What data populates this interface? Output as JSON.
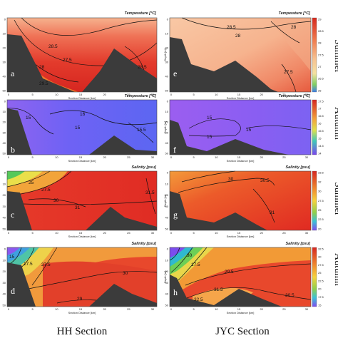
{
  "chart_data": {
    "type": "heatmap",
    "section_labels": {
      "left": "HH Section",
      "right": "JYC Section"
    },
    "season_labels": [
      "Summer",
      "Autumn"
    ],
    "xlabel": "Section Distance [km]",
    "ylabel": "Depth [m]",
    "x_ticks": [
      "0",
      "5",
      "10",
      "15",
      "20",
      "25",
      "30"
    ],
    "y_ticks": [
      "0",
      "10",
      "20",
      "30",
      "40",
      "50"
    ],
    "panels": [
      {
        "letter": "a",
        "title": "Temperature [°C]",
        "contours": [
          "28.5",
          "27.5",
          "28",
          "29.5",
          "28.5"
        ]
      },
      {
        "letter": "b",
        "title": "Temperature [°C]",
        "contours": [
          "15",
          "15",
          "15.5",
          "16"
        ]
      },
      {
        "letter": "c",
        "title": "Salinity [psu]",
        "contours": [
          "25",
          "27.5",
          "30",
          "31",
          "31.5"
        ]
      },
      {
        "letter": "d",
        "title": "Salinity [psu]",
        "contours": [
          "15",
          "17.5",
          "27.5",
          "30",
          "29"
        ]
      },
      {
        "letter": "e",
        "title": "Temperature [°C]",
        "contours": [
          "28.5",
          "28",
          "28",
          "27.5"
        ]
      },
      {
        "letter": "f",
        "title": "Temperature [°C]",
        "contours": [
          "15",
          "15",
          "15"
        ]
      },
      {
        "letter": "g",
        "title": "Salinity [psu]",
        "contours": [
          "30",
          "30.5",
          "31"
        ]
      },
      {
        "letter": "h",
        "title": "Salinity [psu]",
        "contours": [
          "30",
          "17.5",
          "29.5",
          "31.5",
          "32.5",
          "30.5"
        ]
      }
    ],
    "colorbars": [
      {
        "ticks": [
          "29",
          "28.5",
          "28",
          "27.5",
          "27",
          "26.5",
          "26"
        ]
      },
      {
        "ticks": [
          "17.5",
          "17",
          "16.5",
          "16",
          "15.5",
          "15",
          "14.5",
          "14"
        ]
      },
      {
        "ticks": [
          "33.5",
          "32",
          "30",
          "27.5",
          "25",
          "22.5",
          "20"
        ]
      },
      {
        "ticks": [
          "32.5",
          "30",
          "27.5",
          "25",
          "22.5",
          "20",
          "17.5",
          "15"
        ]
      }
    ]
  }
}
